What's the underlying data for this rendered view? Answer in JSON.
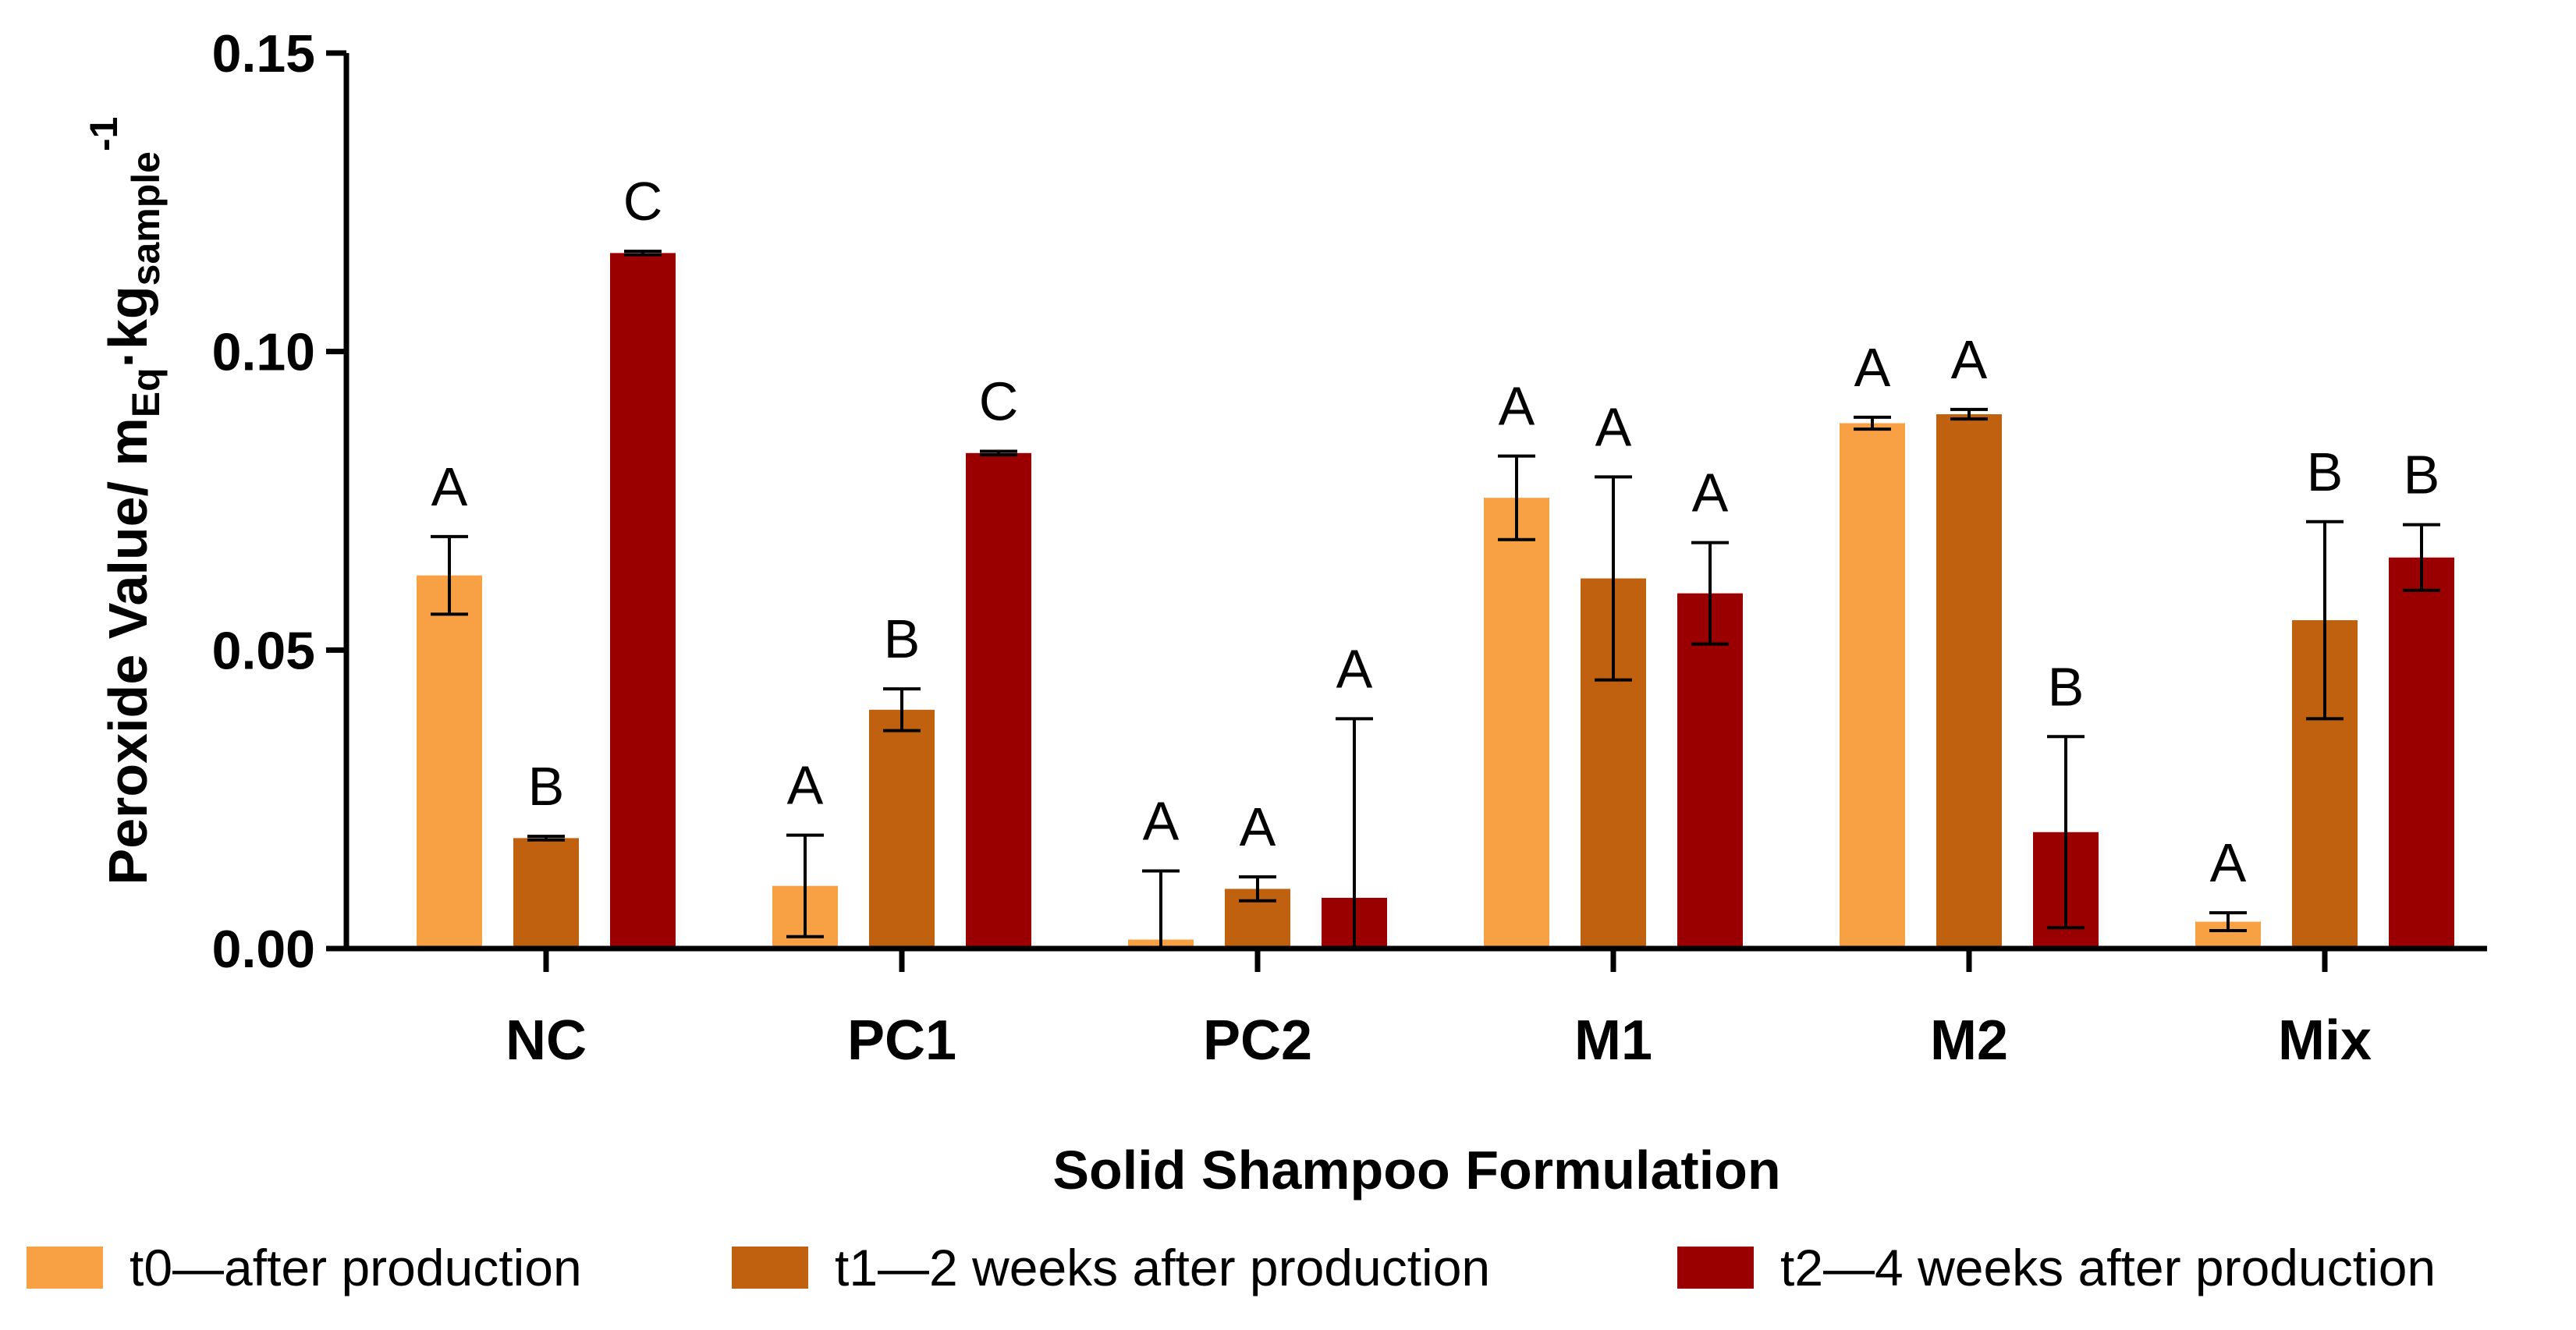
{
  "chart_data": {
    "type": "bar",
    "title": "",
    "xlabel": "Solid Shampoo Formulation",
    "ylabel": {
      "main": "Peroxide Value/ m",
      "sub1": "Eq",
      "mid": "·kg",
      "sub2": "sample",
      "sup": "-1"
    },
    "ylim": [
      0,
      0.15
    ],
    "yticks": [
      {
        "value": 0.0,
        "label": "0.00"
      },
      {
        "value": 0.05,
        "label": "0.05"
      },
      {
        "value": 0.1,
        "label": "0.10"
      },
      {
        "value": 0.15,
        "label": "0.15"
      }
    ],
    "categories": [
      "NC",
      "PC1",
      "PC2",
      "M1",
      "M2",
      "Mix"
    ],
    "series": [
      {
        "name": "t0—after production",
        "color": "#F8A044",
        "values": [
          0.0625,
          0.0105,
          0.0015,
          0.0755,
          0.088,
          0.0045
        ],
        "errors": [
          0.0065,
          0.0085,
          0.0115,
          0.007,
          0.001,
          0.0015
        ],
        "letters": [
          "A",
          "A",
          "A",
          "A",
          "A",
          "A"
        ]
      },
      {
        "name": "t1—2 weeks after production",
        "color": "#C0610F",
        "values": [
          0.0185,
          0.04,
          0.01,
          0.062,
          0.0895,
          0.055
        ],
        "errors": [
          0.0003,
          0.0035,
          0.002,
          0.017,
          0.0008,
          0.0165
        ],
        "letters": [
          "B",
          "B",
          "A",
          "A",
          "A",
          "B"
        ]
      },
      {
        "name": "t2—4 weeks after production",
        "color": "#9B0000",
        "values": [
          0.1165,
          0.083,
          0.0085,
          0.0595,
          0.0195,
          0.0655
        ],
        "errors": [
          0.0003,
          0.0003,
          0.03,
          0.0085,
          0.016,
          0.0055
        ],
        "letters": [
          "C",
          "C",
          "A",
          "A",
          "B",
          "B"
        ]
      }
    ],
    "legend_position": "bottom"
  }
}
